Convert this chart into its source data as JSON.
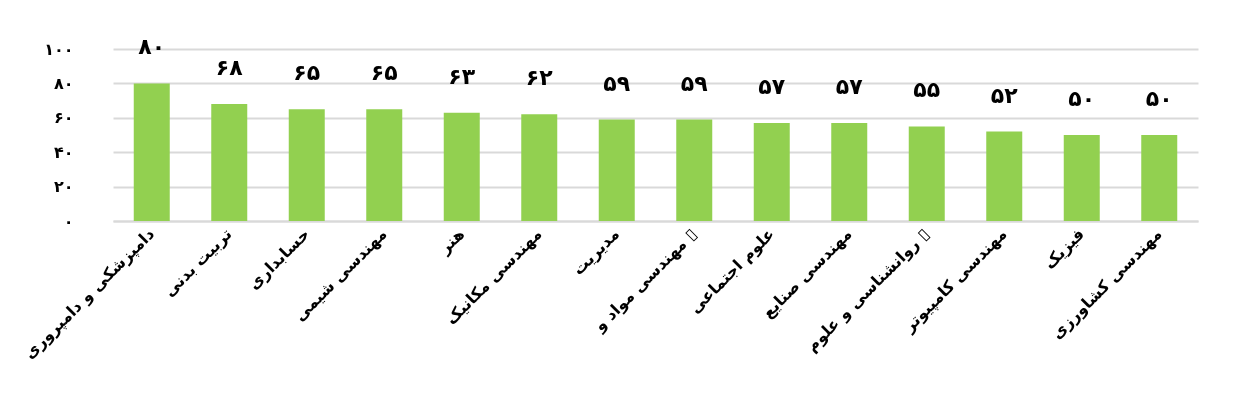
{
  "chart_data": {
    "type": "bar",
    "categories": [
      "دامپزشکی و دامپروری",
      "تربیت بدنی",
      "حسابداری",
      "مهندسی شیمی",
      "هنر",
      "مهندسی مکانیک",
      "مدیریت",
      "مهندسی مواد و ▯",
      "علوم اجتماعی",
      "مهندسی صنایع",
      "روانشناسی و علوم ▯",
      "مهندسی  کامپیوتر",
      "فیزیک",
      "مهندسی  کشاورزی"
    ],
    "values": [
      80,
      68,
      65,
      65,
      63,
      62,
      59,
      59,
      57,
      57,
      55,
      52,
      50,
      50
    ],
    "value_labels": [
      "۸۰",
      "۶۸",
      "۶۵",
      "۶۵",
      "۶۳",
      "۶۲",
      "۵۹",
      "۵۹",
      "۵۷",
      "۵۷",
      "۵۵",
      "۵۲",
      "۵۰",
      "۵۰"
    ],
    "color": "#92d050",
    "ylim": [
      0,
      100
    ],
    "yticks": [
      {
        "value": 0,
        "label": "۰"
      },
      {
        "value": 20,
        "label": "۲۰"
      },
      {
        "value": 40,
        "label": "۴۰"
      },
      {
        "value": 60,
        "label": "۶۰"
      },
      {
        "value": 80,
        "label": "۸۰"
      },
      {
        "value": 100,
        "label": "۱۰۰"
      }
    ],
    "grid": "y"
  }
}
